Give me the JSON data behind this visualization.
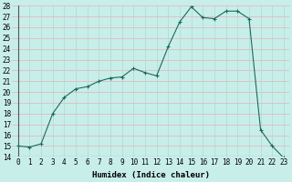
{
  "x": [
    0,
    1,
    2,
    3,
    4,
    5,
    6,
    7,
    8,
    9,
    10,
    11,
    12,
    13,
    14,
    15,
    16,
    17,
    18,
    19,
    20,
    21,
    22,
    23
  ],
  "y": [
    15.0,
    14.9,
    15.2,
    18.0,
    19.5,
    20.3,
    20.5,
    21.0,
    21.3,
    21.4,
    22.2,
    21.8,
    21.5,
    24.2,
    26.5,
    27.9,
    26.9,
    26.8,
    27.5,
    27.5,
    26.8,
    16.5,
    15.0,
    13.9
  ],
  "xlabel": "Humidex (Indice chaleur)",
  "ylim": [
    14,
    28
  ],
  "xlim": [
    -0.5,
    23.5
  ],
  "yticks": [
    14,
    15,
    16,
    17,
    18,
    19,
    20,
    21,
    22,
    23,
    24,
    25,
    26,
    27,
    28
  ],
  "xticks": [
    0,
    1,
    2,
    3,
    4,
    5,
    6,
    7,
    8,
    9,
    10,
    11,
    12,
    13,
    14,
    15,
    16,
    17,
    18,
    19,
    20,
    21,
    22,
    23
  ],
  "line_color": "#1a6b5a",
  "marker": "+",
  "bg_color": "#c8eeea",
  "grid_color_h": "#e8b0b0",
  "grid_color_v": "#b0d8d0",
  "label_fontsize": 6.5,
  "tick_fontsize": 5.5
}
